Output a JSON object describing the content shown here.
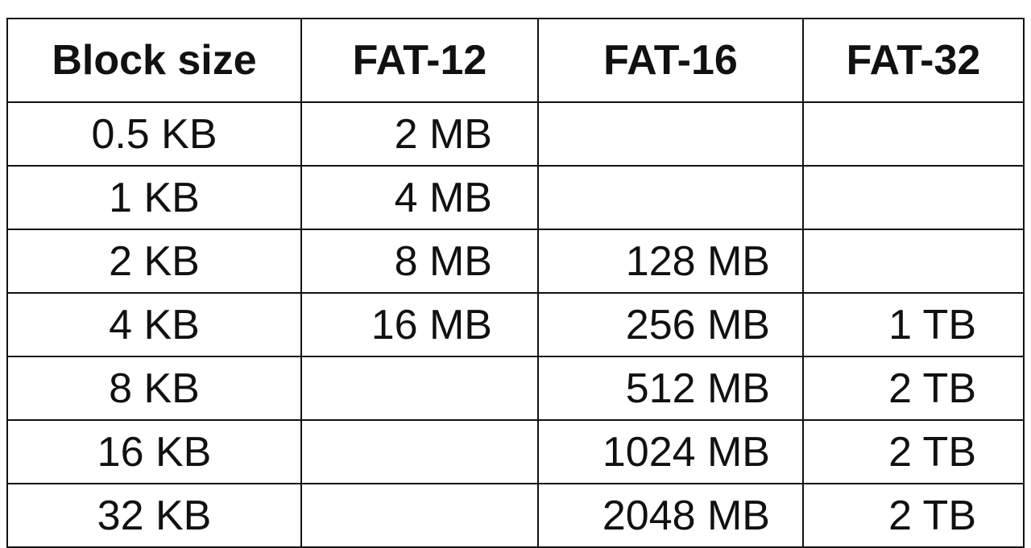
{
  "table": {
    "headers": [
      "Block size",
      "FAT-12",
      "FAT-16",
      "FAT-32"
    ],
    "rows": [
      [
        "0.5 KB",
        "2 MB",
        "",
        ""
      ],
      [
        "1 KB",
        "4 MB",
        "",
        ""
      ],
      [
        "2 KB",
        "8 MB",
        "128 MB",
        ""
      ],
      [
        "4 KB",
        "16 MB",
        "256 MB",
        "1 TB"
      ],
      [
        "8 KB",
        "",
        "512 MB",
        "2 TB"
      ],
      [
        "16 KB",
        "",
        "1024 MB",
        "2 TB"
      ],
      [
        "32 KB",
        "",
        "2048 MB",
        "2 TB"
      ]
    ]
  }
}
